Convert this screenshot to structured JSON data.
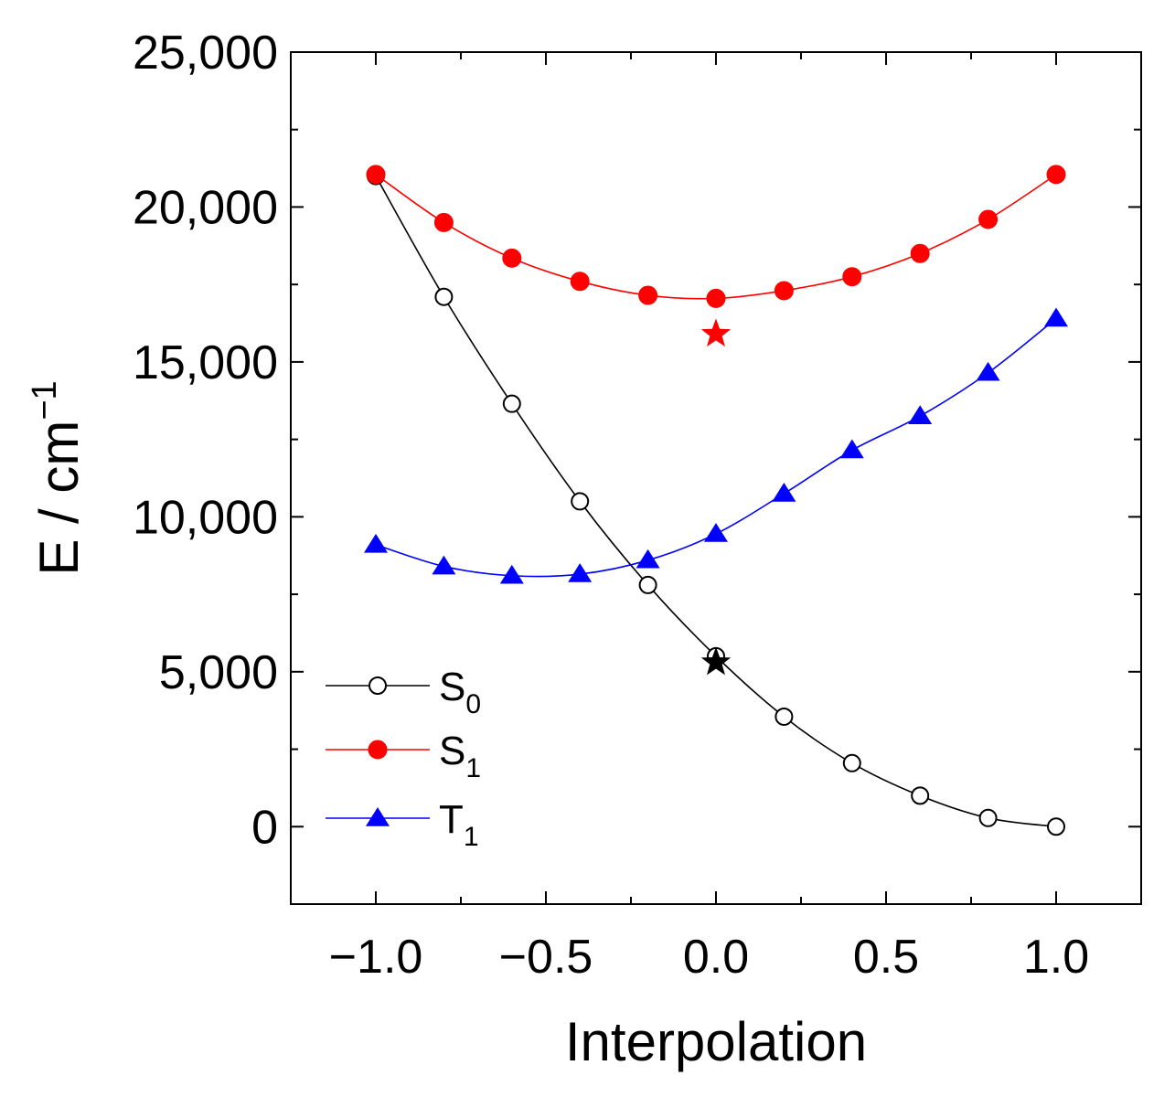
{
  "chart_data": {
    "type": "line",
    "title": "",
    "xlabel": "Interpolation",
    "ylabel": "E / cm",
    "ylabel_superscript": "−1",
    "xlim": [
      -1.25,
      1.25
    ],
    "ylim": [
      -2500,
      25000
    ],
    "x_ticks": [
      -1.0,
      -0.5,
      0.0,
      0.5,
      1.0
    ],
    "x_tick_labels": [
      "−1.0",
      "−0.5",
      "0.0",
      "0.5",
      "1.0"
    ],
    "y_ticks": [
      0,
      5000,
      10000,
      15000,
      20000,
      25000
    ],
    "y_tick_labels": [
      "0",
      "5,000",
      "10,000",
      "15,000",
      "20,000",
      "25,000"
    ],
    "grid": false,
    "legend_position": "bottom-left",
    "x": [
      -1.0,
      -0.8,
      -0.6,
      -0.4,
      -0.2,
      0.0,
      0.2,
      0.4,
      0.6,
      0.8,
      1.0
    ],
    "series": [
      {
        "name": "S",
        "subscript": "0",
        "color": "#000000",
        "marker": "open-circle",
        "values": [
          21000,
          17100,
          13650,
          10500,
          7800,
          5500,
          3550,
          2050,
          1000,
          280,
          0
        ]
      },
      {
        "name": "S",
        "subscript": "1",
        "color": "#ff0000",
        "marker": "filled-circle",
        "values": [
          21050,
          19500,
          18350,
          17600,
          17150,
          17050,
          17300,
          17750,
          18500,
          19600,
          21050
        ]
      },
      {
        "name": "T",
        "subscript": "1",
        "color": "#0000ff",
        "marker": "filled-triangle",
        "values": [
          9100,
          8400,
          8100,
          8150,
          8600,
          9450,
          10750,
          12150,
          13250,
          14650,
          16400
        ]
      }
    ],
    "annotations": [
      {
        "type": "star",
        "x": 0.0,
        "y": 15900,
        "color": "#ff0000"
      },
      {
        "type": "star",
        "x": 0.0,
        "y": 5300,
        "color": "#000000"
      }
    ]
  }
}
